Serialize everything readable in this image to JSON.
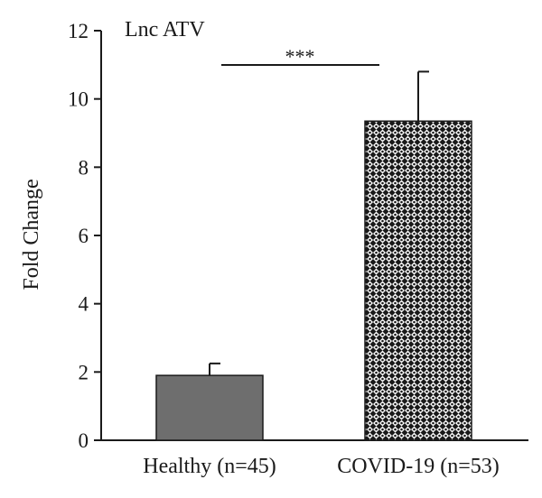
{
  "chart_data": {
    "type": "bar",
    "title": "Lnc ATV",
    "ylabel": "Fold Change",
    "xlabel": "",
    "ylim": [
      0,
      12
    ],
    "yticks": [
      0,
      2,
      4,
      6,
      8,
      10,
      12
    ],
    "categories": [
      "Healthy (n=45)",
      "COVID-19 (n=53)"
    ],
    "values": [
      1.9,
      9.35
    ],
    "errors": [
      0.35,
      1.45
    ],
    "significance": "***",
    "bar_colors": [
      "#6e6e6e",
      "#ffffff"
    ],
    "bar_patterns": [
      "solid",
      "checkered"
    ],
    "grid": false
  }
}
